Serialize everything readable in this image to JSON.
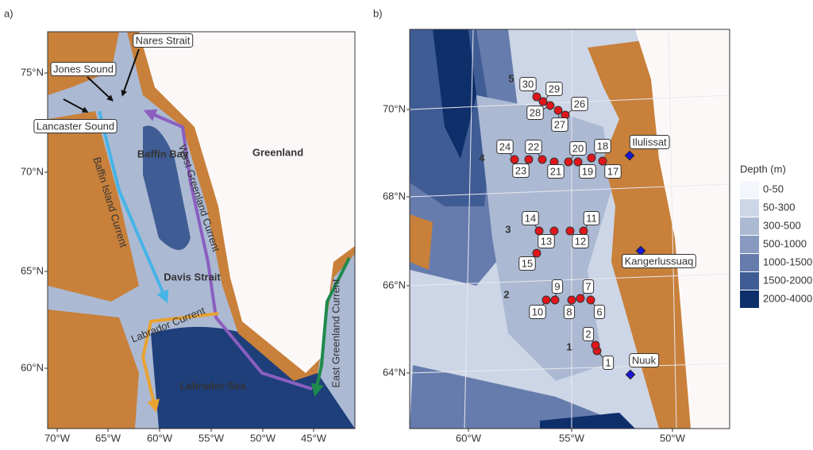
{
  "panel_a": {
    "label": "a)",
    "lat_labels": [
      "75°N",
      "70°N",
      "65°N",
      "60°N"
    ],
    "lon_labels": [
      "70°W",
      "65°W",
      "60°W",
      "55°W",
      "50°W",
      "45°W"
    ],
    "places": [
      "Nares Strait",
      "Jones Sound",
      "Lancaster Sound",
      "Baffin Island Current",
      "Baffin Bay",
      "West Greenland Current",
      "Greenland",
      "Davis Strait",
      "Labrador Current",
      "Labrador Sea",
      "East Greenland Current"
    ]
  },
  "panel_b": {
    "label": "b)",
    "lat_labels": [
      "70°N",
      "68°N",
      "66°N",
      "64°N"
    ],
    "lon_labels": [
      "60°W",
      "55°W",
      "50°W"
    ],
    "regions": [
      "1",
      "2",
      "3",
      "4",
      "5"
    ],
    "stations": [
      "1",
      "2",
      "6",
      "7",
      "8",
      "9",
      "10",
      "11",
      "12",
      "13",
      "14",
      "15",
      "17",
      "18",
      "19",
      "20",
      "21",
      "22",
      "23",
      "24",
      "26",
      "27",
      "28",
      "29",
      "30"
    ],
    "towns": [
      "Ilulissat",
      "Kangerlussuaq",
      "Nuuk"
    ],
    "legend": {
      "title": "Depth (m)",
      "entries": [
        {
          "name": "0-50",
          "color": "#f3f6fb"
        },
        {
          "name": "50-300",
          "color": "#cdd6e6"
        },
        {
          "name": "300-500",
          "color": "#abb9d3"
        },
        {
          "name": "500-1000",
          "color": "#889ac0"
        },
        {
          "name": "1000-1500",
          "color": "#667cad"
        },
        {
          "name": "1500-2000",
          "color": "#3f5c94"
        },
        {
          "name": "2000-4000",
          "color": "#0f2f6b"
        }
      ]
    }
  }
}
